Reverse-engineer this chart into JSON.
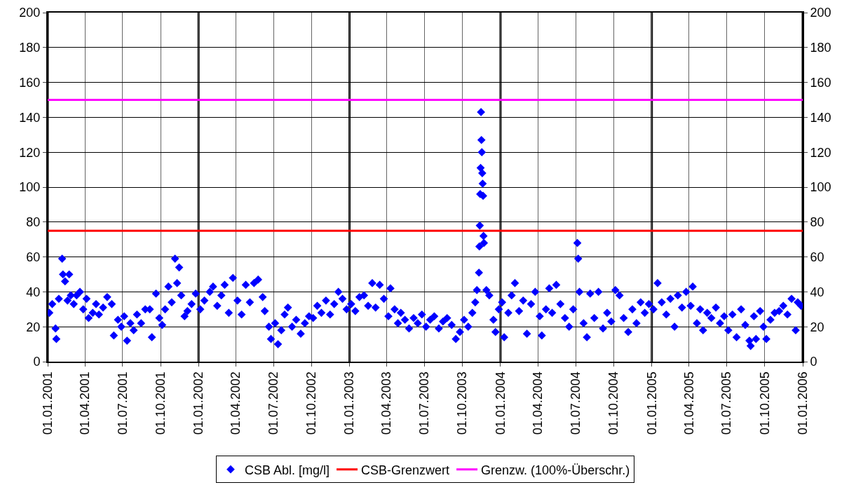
{
  "chart_data": {
    "type": "scatter",
    "grid": true,
    "legend": "bottom",
    "xlim": [
      "2001-01-01",
      "2006-01-01"
    ],
    "xticks": [
      {
        "value": "2001-01-01",
        "label": "01.01.2001"
      },
      {
        "value": "2001-04-01",
        "label": "01.04.2001"
      },
      {
        "value": "2001-07-01",
        "label": "01.07.2001"
      },
      {
        "value": "2001-10-01",
        "label": "01.10.2001"
      },
      {
        "value": "2002-01-01",
        "label": "01.01.2002"
      },
      {
        "value": "2002-04-01",
        "label": "01.04.2002"
      },
      {
        "value": "2002-07-01",
        "label": "01.07.2002"
      },
      {
        "value": "2002-10-01",
        "label": "01.10.2002"
      },
      {
        "value": "2003-01-01",
        "label": "01.01.2003"
      },
      {
        "value": "2003-04-01",
        "label": "01.04.2003"
      },
      {
        "value": "2003-07-01",
        "label": "01.07.2003"
      },
      {
        "value": "2003-10-01",
        "label": "01.10.2003"
      },
      {
        "value": "2004-01-01",
        "label": "01.01.2004"
      },
      {
        "value": "2004-04-01",
        "label": "01.04.2004"
      },
      {
        "value": "2004-07-01",
        "label": "01.07.2004"
      },
      {
        "value": "2004-10-01",
        "label": "01.10.2004"
      },
      {
        "value": "2005-01-01",
        "label": "01.01.2005"
      },
      {
        "value": "2005-04-01",
        "label": "01.04.2005"
      },
      {
        "value": "2005-07-01",
        "label": "01.07.2005"
      },
      {
        "value": "2005-10-01",
        "label": "01.10.2005"
      },
      {
        "value": "2006-01-01",
        "label": "01.01.2006"
      }
    ],
    "ylim": [
      0,
      200
    ],
    "yticks": [
      0,
      20,
      40,
      60,
      80,
      100,
      120,
      140,
      160,
      180,
      200
    ],
    "y2lim": [
      0,
      200
    ],
    "y2ticks": [
      0,
      20,
      40,
      60,
      80,
      100,
      120,
      140,
      160,
      180,
      200
    ],
    "series": [
      {
        "name": "CSB Abl. [mg/l]",
        "type": "scatter",
        "marker": "diamond",
        "color": "#0000ff",
        "x": [
          "2001-01-05",
          "2001-01-12",
          "2001-01-20",
          "2001-01-22",
          "2001-01-28",
          "2001-02-05",
          "2001-02-07",
          "2001-02-12",
          "2001-02-18",
          "2001-02-22",
          "2001-02-26",
          "2001-03-05",
          "2001-03-12",
          "2001-03-20",
          "2001-03-28",
          "2001-04-05",
          "2001-04-10",
          "2001-04-20",
          "2001-04-28",
          "2001-05-05",
          "2001-05-15",
          "2001-05-25",
          "2001-06-05",
          "2001-06-10",
          "2001-06-20",
          "2001-06-28",
          "2001-07-05",
          "2001-07-12",
          "2001-07-20",
          "2001-07-28",
          "2001-08-05",
          "2001-08-15",
          "2001-08-25",
          "2001-09-05",
          "2001-09-10",
          "2001-09-20",
          "2001-09-28",
          "2001-10-05",
          "2001-10-12",
          "2001-10-20",
          "2001-10-28",
          "2001-11-05",
          "2001-11-10",
          "2001-11-15",
          "2001-11-20",
          "2001-11-28",
          "2001-12-05",
          "2001-12-15",
          "2001-12-25",
          "2002-01-05",
          "2002-01-15",
          "2002-01-28",
          "2002-02-05",
          "2002-02-15",
          "2002-02-25",
          "2002-03-05",
          "2002-03-15",
          "2002-03-25",
          "2002-04-05",
          "2002-04-15",
          "2002-04-25",
          "2002-05-05",
          "2002-05-15",
          "2002-05-25",
          "2002-06-05",
          "2002-06-10",
          "2002-06-20",
          "2002-06-25",
          "2002-07-05",
          "2002-07-12",
          "2002-07-20",
          "2002-07-28",
          "2002-08-05",
          "2002-08-15",
          "2002-08-25",
          "2002-09-05",
          "2002-09-15",
          "2002-09-25",
          "2002-10-05",
          "2002-10-15",
          "2002-10-25",
          "2002-11-05",
          "2002-11-15",
          "2002-11-25",
          "2002-12-05",
          "2002-12-15",
          "2002-12-25",
          "2003-01-05",
          "2003-01-15",
          "2003-01-25",
          "2003-02-05",
          "2003-02-15",
          "2003-02-25",
          "2003-03-05",
          "2003-03-15",
          "2003-03-25",
          "2003-04-05",
          "2003-04-10",
          "2003-04-20",
          "2003-04-28",
          "2003-05-05",
          "2003-05-15",
          "2003-05-25",
          "2003-06-05",
          "2003-06-15",
          "2003-06-25",
          "2003-07-05",
          "2003-07-15",
          "2003-07-25",
          "2003-08-05",
          "2003-08-15",
          "2003-08-25",
          "2003-09-05",
          "2003-09-15",
          "2003-09-25",
          "2003-10-05",
          "2003-10-15",
          "2003-10-25",
          "2003-11-01",
          "2003-11-05",
          "2003-11-10",
          "2003-11-11",
          "2003-11-12",
          "2003-11-13",
          "2003-11-14",
          "2003-11-15",
          "2003-11-16",
          "2003-11-17",
          "2003-11-18",
          "2003-11-19",
          "2003-11-20",
          "2003-11-21",
          "2003-11-22",
          "2003-11-28",
          "2003-12-05",
          "2003-12-15",
          "2003-12-20",
          "2003-12-28",
          "2004-01-05",
          "2004-01-10",
          "2004-01-20",
          "2004-01-28",
          "2004-02-05",
          "2004-02-15",
          "2004-02-25",
          "2004-03-05",
          "2004-03-15",
          "2004-03-25",
          "2004-04-05",
          "2004-04-10",
          "2004-04-20",
          "2004-04-28",
          "2004-05-05",
          "2004-05-15",
          "2004-05-25",
          "2004-06-05",
          "2004-06-15",
          "2004-06-25",
          "2004-07-05",
          "2004-07-07",
          "2004-07-10",
          "2004-07-20",
          "2004-07-28",
          "2004-08-05",
          "2004-08-15",
          "2004-08-25",
          "2004-09-05",
          "2004-09-15",
          "2004-09-25",
          "2004-10-05",
          "2004-10-15",
          "2004-10-25",
          "2004-11-05",
          "2004-11-15",
          "2004-11-25",
          "2004-12-05",
          "2004-12-15",
          "2004-12-25",
          "2005-01-05",
          "2005-01-15",
          "2005-01-25",
          "2005-02-05",
          "2005-02-15",
          "2005-02-25",
          "2005-03-05",
          "2005-03-15",
          "2005-03-25",
          "2005-04-05",
          "2005-04-10",
          "2005-04-20",
          "2005-04-28",
          "2005-05-05",
          "2005-05-15",
          "2005-05-25",
          "2005-06-05",
          "2005-06-15",
          "2005-06-25",
          "2005-07-05",
          "2005-07-15",
          "2005-07-25",
          "2005-08-05",
          "2005-08-15",
          "2005-08-25",
          "2005-08-28",
          "2005-09-05",
          "2005-09-10",
          "2005-09-20",
          "2005-09-28",
          "2005-10-05",
          "2005-10-15",
          "2005-10-25",
          "2005-11-05",
          "2005-11-15",
          "2005-11-25",
          "2005-12-05",
          "2005-12-15",
          "2005-12-20",
          "2005-12-28"
        ],
        "values": [
          28,
          33,
          19,
          13,
          36,
          59,
          50,
          46,
          35,
          50,
          38,
          33,
          38,
          40,
          30,
          36,
          25,
          28,
          33,
          27,
          31,
          37,
          33,
          15,
          24,
          20,
          26,
          12,
          22,
          18,
          27,
          22,
          30,
          30,
          14,
          39,
          25,
          21,
          30,
          43,
          34,
          59,
          45,
          54,
          38,
          26,
          29,
          33,
          39,
          30,
          35,
          40,
          43,
          32,
          38,
          44,
          28,
          48,
          35,
          27,
          44,
          34,
          45,
          47,
          37,
          29,
          20,
          13,
          22,
          10,
          18,
          27,
          31,
          20,
          24,
          16,
          22,
          26,
          25,
          32,
          28,
          35,
          27,
          33,
          40,
          36,
          30,
          33,
          29,
          37,
          38,
          32,
          45,
          31,
          44,
          36,
          26,
          42,
          30,
          22,
          28,
          24,
          19,
          25,
          22,
          27,
          20,
          24,
          26,
          19,
          23,
          25,
          21,
          13,
          17,
          24,
          20,
          28,
          34,
          41,
          51,
          66,
          78,
          96,
          111,
          143,
          127,
          120,
          108,
          102,
          95,
          72,
          68,
          41,
          38,
          24,
          17,
          30,
          34,
          14,
          28,
          38,
          45,
          29,
          35,
          16,
          33,
          40,
          26,
          15,
          30,
          42,
          28,
          44,
          33,
          25,
          20,
          30,
          68,
          59,
          40,
          22,
          14,
          39,
          25,
          40,
          19,
          28,
          23,
          41,
          38,
          25,
          17,
          30,
          22,
          34,
          28,
          33,
          30,
          45,
          34,
          27,
          36,
          20,
          38,
          31,
          40,
          32,
          43,
          22,
          30,
          18,
          28,
          25,
          31,
          22,
          26,
          18,
          27,
          14,
          30,
          21,
          12,
          9,
          26,
          13,
          29,
          20,
          13,
          24,
          28,
          29,
          32,
          27,
          36,
          18,
          34,
          32
        ]
      },
      {
        "name": "CSB-Grenzwert",
        "type": "line",
        "color": "#ff0000",
        "x": [
          "2001-01-01",
          "2006-01-01"
        ],
        "values": [
          75,
          75
        ]
      },
      {
        "name": "Grenzw. (100%-Überschr.)",
        "type": "line",
        "axis": "y2",
        "color": "#ff00ff",
        "x": [
          "2001-01-01",
          "2006-01-01"
        ],
        "values": [
          150,
          150
        ]
      }
    ]
  }
}
